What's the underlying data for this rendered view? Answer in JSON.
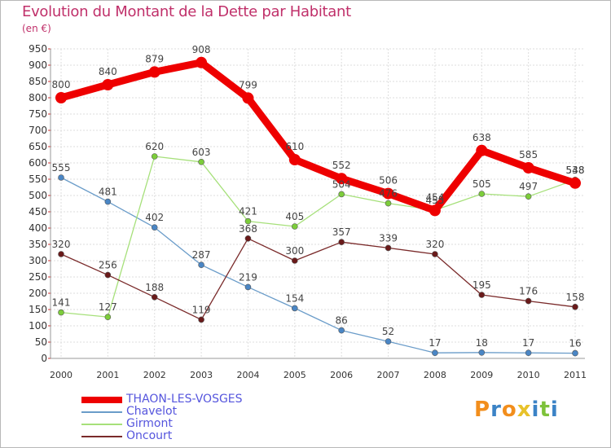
{
  "header": {
    "title": "Evolution du Montant de la Dette par Habitant",
    "unit": "(en €)"
  },
  "colors": {
    "title": "#c0306a",
    "grid": "#dedede",
    "tick_text": "#333333",
    "value_text": "#444444"
  },
  "logo": {
    "text": "Proxiti",
    "colors": [
      "#f28e1c",
      "#3b83c6",
      "#f28e1c",
      "#e8c22a",
      "#3b83c6",
      "#7ec23a",
      "#3b83c6"
    ]
  },
  "chart_data": {
    "type": "line",
    "title": "Evolution du Montant de la Dette par Habitant",
    "subtitle": "(en €)",
    "xlabel": "",
    "ylabel": "",
    "x": [
      "2000",
      "2001",
      "2002",
      "2003",
      "2004",
      "2005",
      "2006",
      "2007",
      "2008",
      "2009",
      "2010",
      "2011"
    ],
    "ylim": [
      0,
      950
    ],
    "yticks": [
      0,
      50,
      100,
      150,
      200,
      250,
      300,
      350,
      400,
      450,
      500,
      550,
      600,
      650,
      700,
      750,
      800,
      850,
      900,
      950
    ],
    "grid": true,
    "legend_position": "bottom-left",
    "series": [
      {
        "name": "THAON-LES-VOSGES",
        "color": "#ee0000",
        "marker": "#ee0000",
        "legend_text_color": "#5555dd",
        "bold": true,
        "values": [
          800,
          840,
          879,
          908,
          799,
          610,
          552,
          506,
          454,
          638,
          585,
          538
        ]
      },
      {
        "name": "Chavelot",
        "color": "#6a9cc9",
        "marker": "#4a86c5",
        "legend_text_color": "#5555dd",
        "bold": false,
        "values": [
          555,
          481,
          402,
          287,
          219,
          154,
          86,
          52,
          17,
          18,
          17,
          16
        ]
      },
      {
        "name": "Girmont",
        "color": "#a6e07a",
        "marker": "#7ccd3a",
        "legend_text_color": "#5555dd",
        "bold": false,
        "values": [
          141,
          127,
          620,
          603,
          421,
          405,
          504,
          476,
          455,
          505,
          497,
          548
        ]
      },
      {
        "name": "Oncourt",
        "color": "#7a2a2a",
        "marker": "#6a1a1a",
        "legend_text_color": "#5555dd",
        "bold": false,
        "values": [
          320,
          256,
          188,
          119,
          368,
          300,
          357,
          339,
          320,
          195,
          176,
          158
        ]
      }
    ]
  }
}
